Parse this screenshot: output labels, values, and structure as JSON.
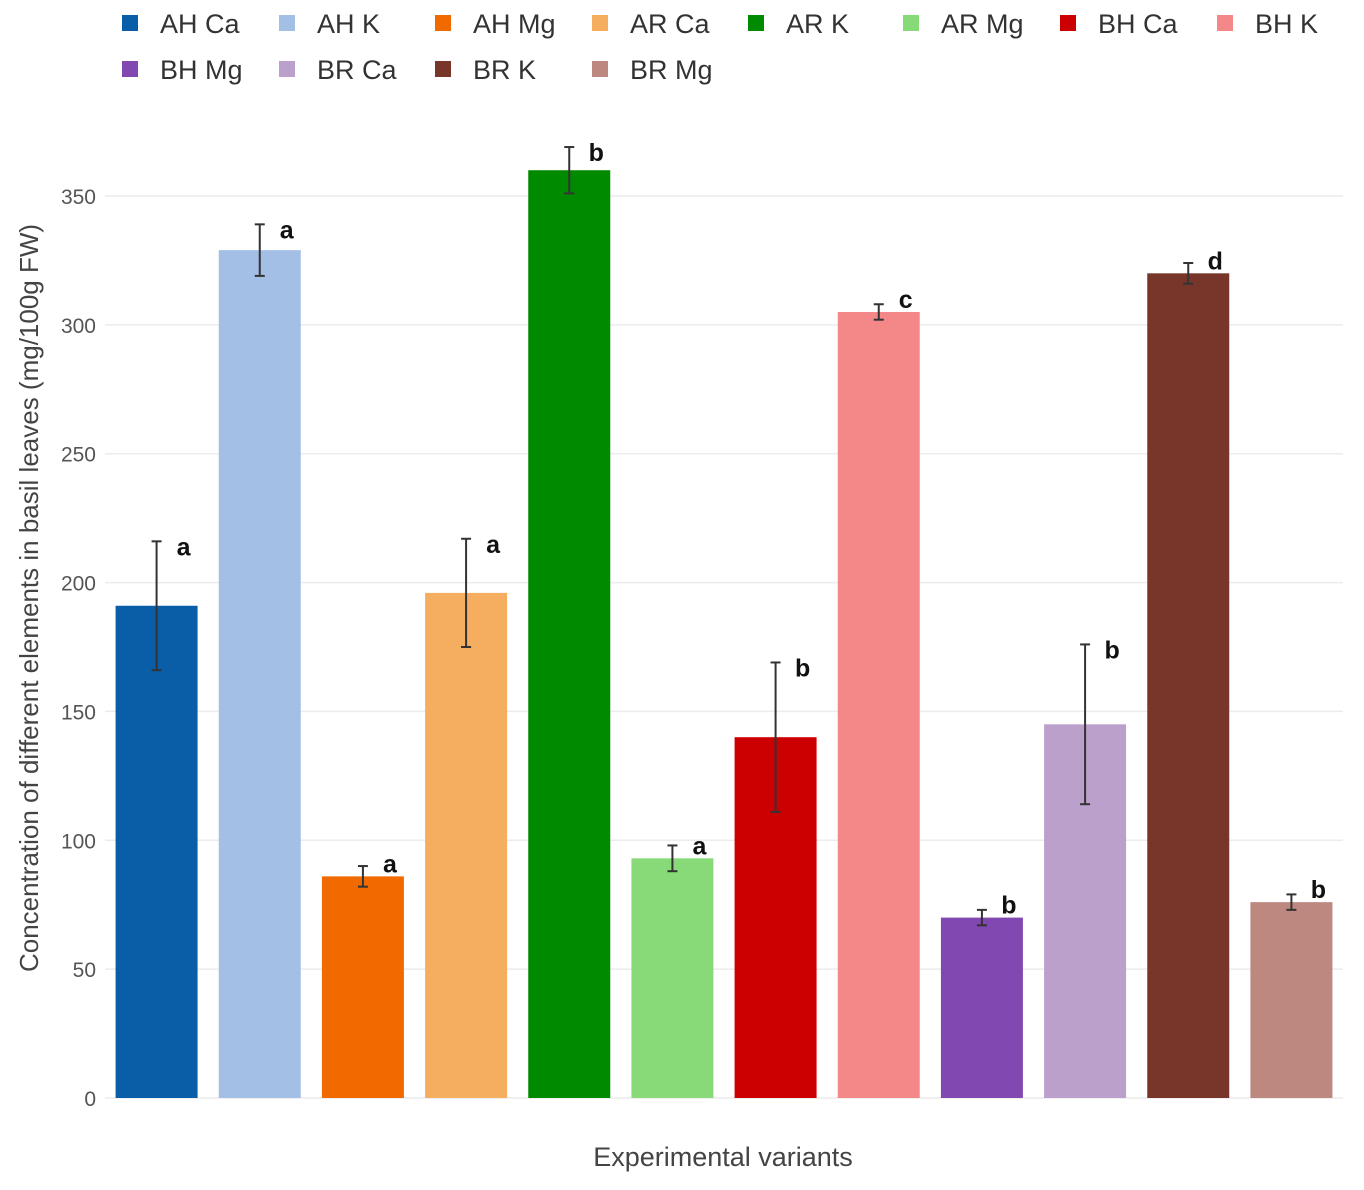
{
  "chart_data": {
    "type": "bar",
    "title": "",
    "xlabel": "Experimental variants",
    "ylabel": "Concentration of different elements in basil leaves (mg/100g FW)",
    "ylim": [
      0,
      370
    ],
    "yticks": [
      0,
      50,
      100,
      150,
      200,
      250,
      300,
      350
    ],
    "grid": "horizontal",
    "legend_position": "top",
    "categories": [
      "AH Ca",
      "AH K",
      "AH Mg",
      "AR Ca",
      "AR K",
      "AR Mg",
      "BH Ca",
      "BH K",
      "BH Mg",
      "BR Ca",
      "BR K",
      "BR Mg"
    ],
    "values": [
      191,
      329,
      86,
      196,
      360,
      93,
      140,
      305,
      70,
      145,
      320,
      76
    ],
    "error": [
      25,
      10,
      4,
      21,
      9,
      5,
      29,
      3,
      3,
      31,
      4,
      3
    ],
    "significance_labels": [
      "a",
      "a",
      "a",
      "a",
      "b",
      "a",
      "b",
      "c",
      "b",
      "b",
      "d",
      "b"
    ],
    "colors": [
      "#0a5ea8",
      "#a3bfe6",
      "#f06a00",
      "#f5ae60",
      "#008a00",
      "#88da78",
      "#cc0000",
      "#f48888",
      "#8048b0",
      "#bca0cc",
      "#78362a",
      "#bc8880"
    ]
  }
}
